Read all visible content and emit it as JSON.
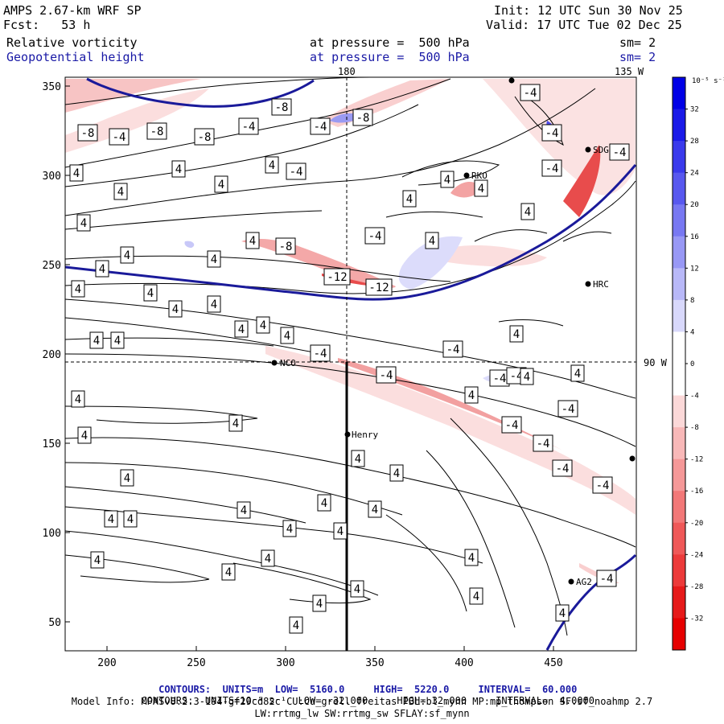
{
  "header": {
    "model": "AMPS 2.67-km WRF SP",
    "fcst": "Fcst:   53 h",
    "init": "Init: 12 UTC Sun 30 Nov 25",
    "valid": "Valid: 17 UTC Tue 02 Dec 25",
    "field1_name": "Relative vorticity",
    "field1_level": "at pressure =  500 hPa",
    "field1_sm": "sm= 2",
    "field2_name": "Geopotential height",
    "field2_level": "at pressure =  500 hPa",
    "field2_sm": "sm= 2"
  },
  "map": {
    "lon_label_180": "180",
    "lon_label_135w": "135 W",
    "lon_label_90w": "90 W",
    "x_ticks": [
      "200",
      "250",
      "300",
      "350",
      "400",
      "450"
    ],
    "y_ticks": [
      "350",
      "300",
      "250",
      "200",
      "150",
      "100",
      "50"
    ],
    "stations": [
      "NCO",
      "Henry",
      "RKO",
      "HRC",
      "AG2",
      "SDG"
    ],
    "contour_labels": {
      "minus4": "-4",
      "minus8": "-8",
      "minus12": "-12",
      "plus4": "4"
    }
  },
  "colorbar": {
    "unit": "10⁻⁵ s⁻¹",
    "labels": [
      "32",
      "28",
      "24",
      "20",
      "16",
      "12",
      "8",
      "4",
      "0",
      "-4",
      "-8",
      "-12",
      "-16",
      "-20",
      "-24",
      "-28",
      "-32"
    ],
    "colors": [
      "#0000e6",
      "#1a1ae8",
      "#3a3aec",
      "#5858ef",
      "#7878f2",
      "#9898f5",
      "#b8b8f8",
      "#d8d8fb",
      "#ffffff",
      "#ffffff",
      "#fbd8d8",
      "#f8b8b8",
      "#f59898",
      "#f27878",
      "#ef5858",
      "#ec3a3a",
      "#e61a1a",
      "#e60000"
    ]
  },
  "footer": {
    "line1_left": "CONTOURS:  UNITS=m  LOW=  5160.0",
    "line1_mid": "HIGH=  5220.0",
    "line1_right": "INTERVAL=  60.000",
    "line2_left": "CONTOURS:  UNITS=10⁻⁵ s⁻¹  LOW= -32.000",
    "line2_mid": "HIGH= 32.000",
    "line2_right": "INTERVAL=  4.0000",
    "line3": "Model Info: MPASv8.2.3-194-gf29cd82c CU:cu_grell_freitas PBL:bl_mynn MP:mp_thompson SF:sf_noahmp 2.7",
    "line4": "LW:rrtmg_lw SW:rrtmg_sw SFLAY:sf_mynn"
  }
}
